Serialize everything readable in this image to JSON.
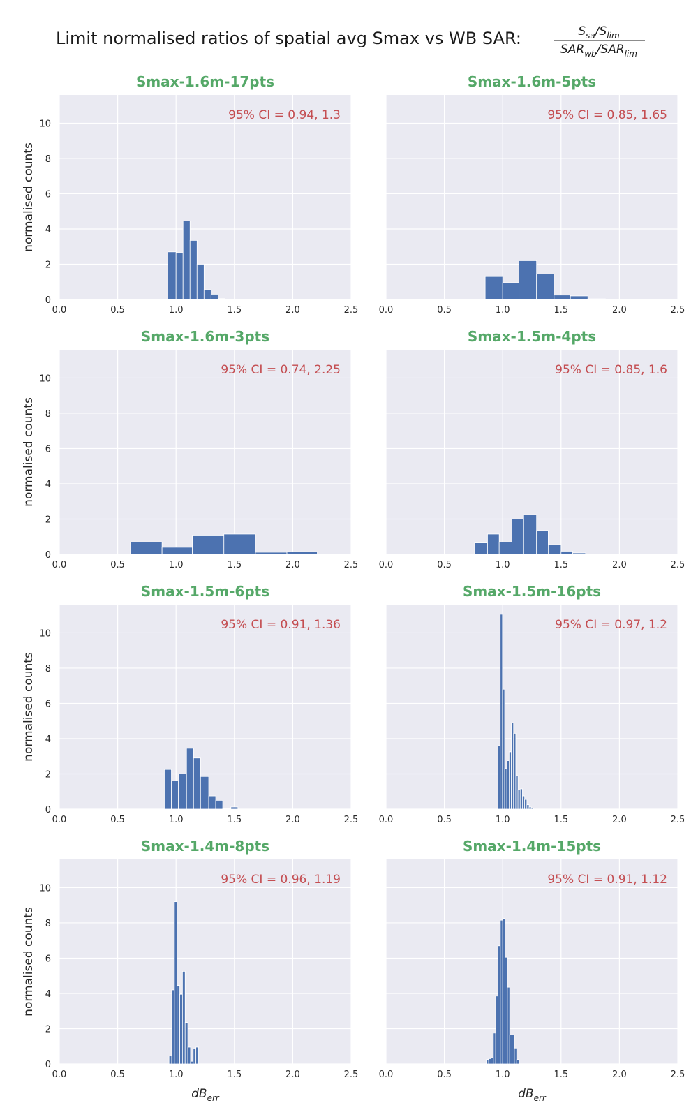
{
  "figure": {
    "title": "Limit normalised ratios of spatial avg Smax vs WB SAR:",
    "fraction": {
      "numerator": {
        "s1": "S",
        "s1_sub": "sa",
        "slash": "/",
        "s2": "S",
        "s2_sub": "lim"
      },
      "denominator": {
        "s1": "SAR",
        "s1_sub": "wb",
        "slash": "/",
        "s2": "SAR",
        "s2_sub": "lim"
      }
    }
  },
  "colors": {
    "panel_bg": "#eaeaf2",
    "grid": "#ffffff",
    "bar": "#4c72b0",
    "title": "#55a868",
    "ci_text": "#c44e52"
  },
  "chart_data": [
    {
      "type": "bar",
      "title": "Smax-1.6m-17pts",
      "annotation": "95% CI = 0.94, 1.3",
      "xlabel": "",
      "ylabel": "normalised counts",
      "xlim": [
        0,
        2.5
      ],
      "ylim": [
        0,
        11.6
      ],
      "xticks": [
        "0.0",
        "0.5",
        "1.0",
        "1.5",
        "2.0",
        "2.5"
      ],
      "yticks": [
        "0",
        "2",
        "4",
        "6",
        "8",
        "10"
      ],
      "grid": true,
      "bins": [
        {
          "x0": 0.93,
          "x1": 1.0,
          "value": 2.7
        },
        {
          "x0": 1.0,
          "x1": 1.06,
          "value": 2.65
        },
        {
          "x0": 1.06,
          "x1": 1.12,
          "value": 4.45
        },
        {
          "x0": 1.12,
          "x1": 1.18,
          "value": 3.35
        },
        {
          "x0": 1.18,
          "x1": 1.24,
          "value": 2.0
        },
        {
          "x0": 1.24,
          "x1": 1.3,
          "value": 0.55
        },
        {
          "x0": 1.3,
          "x1": 1.36,
          "value": 0.3
        },
        {
          "x0": 1.36,
          "x1": 1.42,
          "value": 0.05
        }
      ]
    },
    {
      "type": "bar",
      "title": "Smax-1.6m-5pts",
      "annotation": "95% CI = 0.85, 1.65",
      "xlabel": "",
      "ylabel": "",
      "xlim": [
        0,
        2.5
      ],
      "ylim": [
        0,
        11.6
      ],
      "xticks": [
        "0.0",
        "0.5",
        "1.0",
        "1.5",
        "2.0",
        "2.5"
      ],
      "yticks": [],
      "grid": true,
      "bins": [
        {
          "x0": 0.85,
          "x1": 1.0,
          "value": 1.3
        },
        {
          "x0": 1.0,
          "x1": 1.14,
          "value": 0.95
        },
        {
          "x0": 1.14,
          "x1": 1.29,
          "value": 2.2
        },
        {
          "x0": 1.29,
          "x1": 1.44,
          "value": 1.45
        },
        {
          "x0": 1.44,
          "x1": 1.58,
          "value": 0.25
        },
        {
          "x0": 1.58,
          "x1": 1.73,
          "value": 0.2
        },
        {
          "x0": 1.73,
          "x1": 1.88,
          "value": 0.04
        }
      ]
    },
    {
      "type": "bar",
      "title": "Smax-1.6m-3pts",
      "annotation": "95% CI = 0.74, 2.25",
      "xlabel": "",
      "ylabel": "normalised counts",
      "xlim": [
        0,
        2.5
      ],
      "ylim": [
        0,
        11.6
      ],
      "xticks": [
        "0.0",
        "0.5",
        "1.0",
        "1.5",
        "2.0",
        "2.5"
      ],
      "yticks": [
        "0",
        "2",
        "4",
        "6",
        "8",
        "10"
      ],
      "grid": true,
      "bins": [
        {
          "x0": 0.61,
          "x1": 0.88,
          "value": 0.7
        },
        {
          "x0": 0.88,
          "x1": 1.14,
          "value": 0.4
        },
        {
          "x0": 1.14,
          "x1": 1.41,
          "value": 1.05
        },
        {
          "x0": 1.41,
          "x1": 1.68,
          "value": 1.15
        },
        {
          "x0": 1.68,
          "x1": 1.95,
          "value": 0.12
        },
        {
          "x0": 1.95,
          "x1": 2.21,
          "value": 0.15
        }
      ]
    },
    {
      "type": "bar",
      "title": "Smax-1.5m-4pts",
      "annotation": "95% CI = 0.85, 1.6",
      "xlabel": "",
      "ylabel": "",
      "xlim": [
        0,
        2.5
      ],
      "ylim": [
        0,
        11.6
      ],
      "xticks": [
        "0.0",
        "0.5",
        "1.0",
        "1.5",
        "2.0",
        "2.5"
      ],
      "yticks": [],
      "grid": true,
      "bins": [
        {
          "x0": 0.76,
          "x1": 0.87,
          "value": 0.65
        },
        {
          "x0": 0.87,
          "x1": 0.97,
          "value": 1.15
        },
        {
          "x0": 0.97,
          "x1": 1.08,
          "value": 0.7
        },
        {
          "x0": 1.08,
          "x1": 1.18,
          "value": 2.0
        },
        {
          "x0": 1.18,
          "x1": 1.29,
          "value": 2.25
        },
        {
          "x0": 1.29,
          "x1": 1.39,
          "value": 1.35
        },
        {
          "x0": 1.39,
          "x1": 1.5,
          "value": 0.55
        },
        {
          "x0": 1.5,
          "x1": 1.6,
          "value": 0.18
        },
        {
          "x0": 1.6,
          "x1": 1.71,
          "value": 0.08
        }
      ]
    },
    {
      "type": "bar",
      "title": "Smax-1.5m-6pts",
      "annotation": "95% CI = 0.91, 1.36",
      "xlabel": "",
      "ylabel": "normalised counts",
      "xlim": [
        0,
        2.5
      ],
      "ylim": [
        0,
        11.6
      ],
      "xticks": [
        "0.0",
        "0.5",
        "1.0",
        "1.5",
        "2.0",
        "2.5"
      ],
      "yticks": [
        "0",
        "2",
        "4",
        "6",
        "8",
        "10"
      ],
      "grid": true,
      "bins": [
        {
          "x0": 0.9,
          "x1": 0.96,
          "value": 2.25
        },
        {
          "x0": 0.96,
          "x1": 1.02,
          "value": 1.6
        },
        {
          "x0": 1.02,
          "x1": 1.09,
          "value": 2.0
        },
        {
          "x0": 1.09,
          "x1": 1.15,
          "value": 3.45
        },
        {
          "x0": 1.15,
          "x1": 1.21,
          "value": 2.9
        },
        {
          "x0": 1.21,
          "x1": 1.28,
          "value": 1.85
        },
        {
          "x0": 1.28,
          "x1": 1.34,
          "value": 0.75
        },
        {
          "x0": 1.34,
          "x1": 1.4,
          "value": 0.5
        },
        {
          "x0": 1.4,
          "x1": 1.47,
          "value": 0.03
        },
        {
          "x0": 1.47,
          "x1": 1.53,
          "value": 0.12
        }
      ]
    },
    {
      "type": "bar",
      "title": "Smax-1.5m-16pts",
      "annotation": "95% CI = 0.97, 1.2",
      "xlabel": "",
      "ylabel": "",
      "xlim": [
        0,
        2.5
      ],
      "ylim": [
        0,
        11.6
      ],
      "xticks": [
        "0.0",
        "0.5",
        "1.0",
        "1.5",
        "2.0",
        "2.5"
      ],
      "yticks": [],
      "grid": true,
      "bins": [
        {
          "x0": 0.96,
          "x1": 0.979,
          "value": 3.6
        },
        {
          "x0": 0.979,
          "x1": 0.998,
          "value": 11.05
        },
        {
          "x0": 0.998,
          "x1": 1.017,
          "value": 6.8
        },
        {
          "x0": 1.017,
          "x1": 1.036,
          "value": 2.3
        },
        {
          "x0": 1.036,
          "x1": 1.055,
          "value": 2.75
        },
        {
          "x0": 1.055,
          "x1": 1.074,
          "value": 3.25
        },
        {
          "x0": 1.074,
          "x1": 1.093,
          "value": 4.9
        },
        {
          "x0": 1.093,
          "x1": 1.112,
          "value": 4.3
        },
        {
          "x0": 1.112,
          "x1": 1.131,
          "value": 1.9
        },
        {
          "x0": 1.131,
          "x1": 1.15,
          "value": 1.1
        },
        {
          "x0": 1.15,
          "x1": 1.169,
          "value": 1.15
        },
        {
          "x0": 1.169,
          "x1": 1.188,
          "value": 0.75
        },
        {
          "x0": 1.188,
          "x1": 1.207,
          "value": 0.55
        },
        {
          "x0": 1.207,
          "x1": 1.226,
          "value": 0.25
        },
        {
          "x0": 1.226,
          "x1": 1.245,
          "value": 0.12
        },
        {
          "x0": 1.245,
          "x1": 1.264,
          "value": 0.05
        }
      ]
    },
    {
      "type": "bar",
      "title": "Smax-1.4m-8pts",
      "annotation": "95% CI = 0.96, 1.19",
      "xlabel": "dBerr",
      "ylabel": "normalised counts",
      "xlim": [
        0,
        2.5
      ],
      "ylim": [
        0,
        11.6
      ],
      "xticks": [
        "0.0",
        "0.5",
        "1.0",
        "1.5",
        "2.0",
        "2.5"
      ],
      "yticks": [
        "0",
        "2",
        "4",
        "6",
        "8",
        "10"
      ],
      "grid": true,
      "bins": [
        {
          "x0": 0.94,
          "x1": 0.963,
          "value": 0.45
        },
        {
          "x0": 0.963,
          "x1": 0.986,
          "value": 4.2
        },
        {
          "x0": 0.986,
          "x1": 1.009,
          "value": 9.2
        },
        {
          "x0": 1.009,
          "x1": 1.032,
          "value": 4.45
        },
        {
          "x0": 1.032,
          "x1": 1.055,
          "value": 3.95
        },
        {
          "x0": 1.055,
          "x1": 1.078,
          "value": 5.25
        },
        {
          "x0": 1.078,
          "x1": 1.101,
          "value": 2.35
        },
        {
          "x0": 1.101,
          "x1": 1.124,
          "value": 0.95
        },
        {
          "x0": 1.124,
          "x1": 1.147,
          "value": 0.15
        },
        {
          "x0": 1.147,
          "x1": 1.17,
          "value": 0.85
        },
        {
          "x0": 1.17,
          "x1": 1.193,
          "value": 0.95
        }
      ]
    },
    {
      "type": "bar",
      "title": "Smax-1.4m-15pts",
      "annotation": "95% CI = 0.91, 1.12",
      "xlabel": "dBerr",
      "ylabel": "",
      "xlim": [
        0,
        2.5
      ],
      "ylim": [
        0,
        11.6
      ],
      "xticks": [
        "0.0",
        "0.5",
        "1.0",
        "1.5",
        "2.0",
        "2.5"
      ],
      "yticks": [],
      "grid": true,
      "bins": [
        {
          "x0": 0.86,
          "x1": 0.88,
          "value": 0.25
        },
        {
          "x0": 0.88,
          "x1": 0.9,
          "value": 0.3
        },
        {
          "x0": 0.9,
          "x1": 0.92,
          "value": 0.35
        },
        {
          "x0": 0.92,
          "x1": 0.94,
          "value": 1.75
        },
        {
          "x0": 0.94,
          "x1": 0.96,
          "value": 3.85
        },
        {
          "x0": 0.96,
          "x1": 0.98,
          "value": 6.7
        },
        {
          "x0": 0.98,
          "x1": 1.0,
          "value": 8.15
        },
        {
          "x0": 1.0,
          "x1": 1.02,
          "value": 8.25
        },
        {
          "x0": 1.02,
          "x1": 1.04,
          "value": 6.05
        },
        {
          "x0": 1.04,
          "x1": 1.06,
          "value": 4.35
        },
        {
          "x0": 1.06,
          "x1": 1.08,
          "value": 1.65
        },
        {
          "x0": 1.08,
          "x1": 1.1,
          "value": 1.65
        },
        {
          "x0": 1.1,
          "x1": 1.12,
          "value": 0.9
        },
        {
          "x0": 1.12,
          "x1": 1.14,
          "value": 0.25
        }
      ]
    }
  ]
}
